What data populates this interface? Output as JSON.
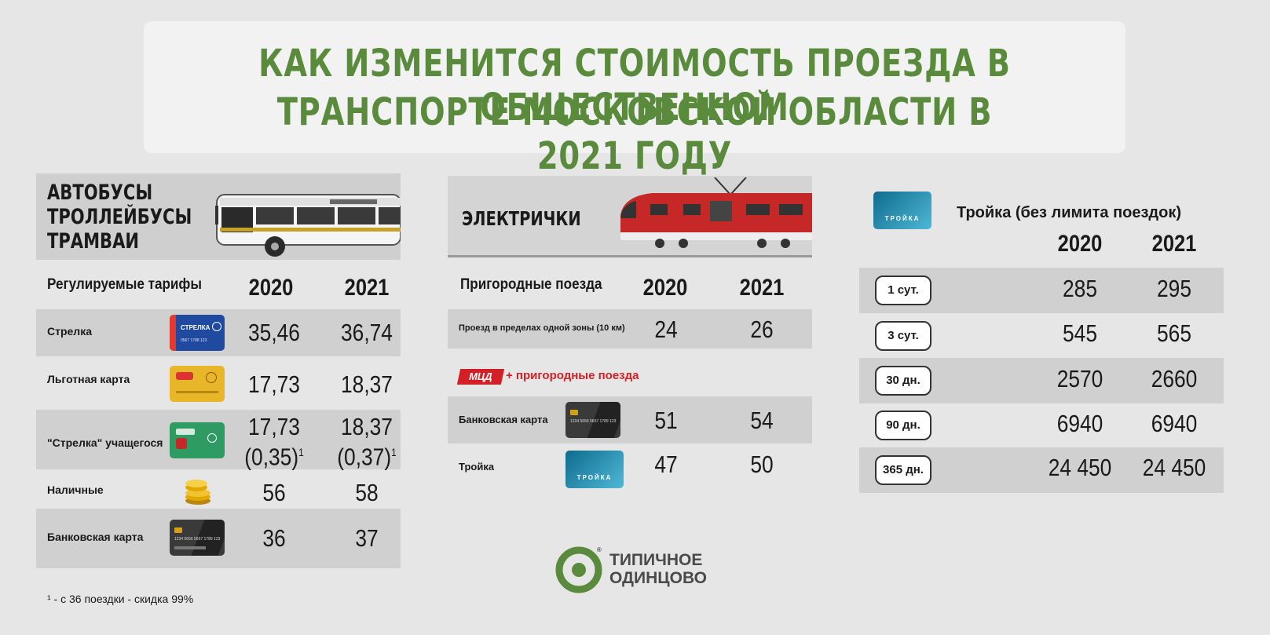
{
  "title": {
    "line1": "КАК ИЗМЕНИТСЯ СТОИМОСТЬ ПРОЕЗДА В ОБЩЕСТВЕННОМ",
    "line2": "ТРАНСПОРТЕ МОСКОВСКОЙ ОБЛАСТИ В 2021 ГОДУ"
  },
  "bus": {
    "heading": [
      "АВТОБУСЫ",
      "ТРОЛЛЕЙБУСЫ",
      "ТРАМВАИ"
    ],
    "subheading": "Регулируемые тарифы",
    "year1": "2020",
    "year2": "2021",
    "rows": [
      {
        "label": "Стрелка",
        "v2020": "35,46",
        "v2021": "36,74"
      },
      {
        "label": "Льготная карта",
        "v2020": "17,73",
        "v2021": "18,37"
      },
      {
        "label": "\"Стрелка\" учащегося",
        "v2020": "17,73",
        "v2021": "18,37",
        "sub2020": "(0,35)",
        "sub2021": "(0,37)",
        "sup": "1"
      },
      {
        "label": "Наличные",
        "v2020": "56",
        "v2021": "58"
      },
      {
        "label": "Банковская карта",
        "v2020": "36",
        "v2021": "37"
      }
    ],
    "footnote": "¹ - с 36 поездки - скидка 99%",
    "card_text": {
      "strelka": "СТРЕЛКА",
      "strelka_num": "0567 1788 123",
      "bank_num": "1234 5656 5657 1789 123"
    }
  },
  "train": {
    "heading": "ЭЛЕКТРИЧКИ",
    "subheading": "Пригородные поезда",
    "year1": "2020",
    "year2": "2021",
    "zone_row": {
      "label": "Проезд в пределах одной зоны (10 км)",
      "v2020": "24",
      "v2021": "26"
    },
    "mcd_badge": "МЦД",
    "mcd_label": "+ пригородные поезда",
    "mcd_rows": [
      {
        "label": "Банковская карта",
        "v2020": "51",
        "v2021": "54"
      },
      {
        "label": "Тройка",
        "v2020": "47",
        "v2021": "50"
      }
    ],
    "troika_card_text": "ТРОЙКА"
  },
  "troika": {
    "heading": "Тройка (без лимита поездок)",
    "card_text": "ТРОЙКА",
    "year1": "2020",
    "year2": "2021",
    "rows": [
      {
        "period": "1 сут.",
        "v2020": "285",
        "v2021": "295"
      },
      {
        "period": "3 сут.",
        "v2020": "545",
        "v2021": "565"
      },
      {
        "period": "30 дн.",
        "v2020": "2570",
        "v2021": "2660"
      },
      {
        "period": "90 дн.",
        "v2020": "6940",
        "v2021": "6940"
      },
      {
        "period": "365 дн.",
        "v2020": "24 450",
        "v2021": "24 450"
      }
    ]
  },
  "logo": {
    "line1": "ТИПИЧНОЕ",
    "line2": "ОДИНЦОВО",
    "registered": "®"
  },
  "colors": {
    "title_green": "#5a8a3c",
    "band": "#d0d0d0",
    "background": "#e6e6e6",
    "mcd_red": "#d32027",
    "strelka_blue": "#1f4aa0",
    "train_red": "#c62828"
  }
}
